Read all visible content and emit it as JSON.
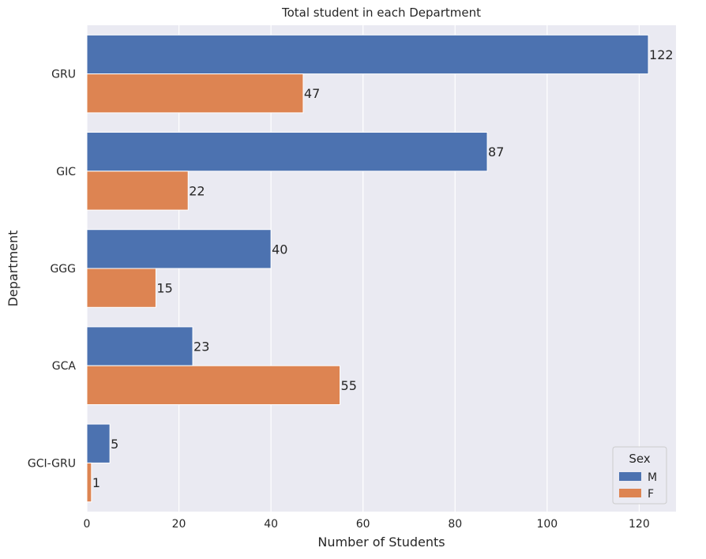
{
  "chart_data": {
    "type": "bar",
    "orientation": "horizontal",
    "title": "Total student in each Department",
    "xlabel": "Number of Students",
    "ylabel": "Department",
    "categories": [
      "GRU",
      "GIC",
      "GGG",
      "GCA",
      "GCI-GRU"
    ],
    "series": [
      {
        "name": "M",
        "values": [
          122,
          87,
          40,
          23,
          5
        ],
        "color": "#4c72b0"
      },
      {
        "name": "F",
        "values": [
          47,
          22,
          15,
          55,
          1
        ],
        "color": "#dd8452"
      }
    ],
    "xlim": [
      0,
      128
    ],
    "xticks": [
      0,
      20,
      40,
      60,
      80,
      100,
      120
    ],
    "grid": true,
    "legend": {
      "title": "Sex",
      "placement": "bottom-right"
    },
    "colors": {
      "background": "#eaeaf2",
      "grid": "#ffffff"
    }
  }
}
